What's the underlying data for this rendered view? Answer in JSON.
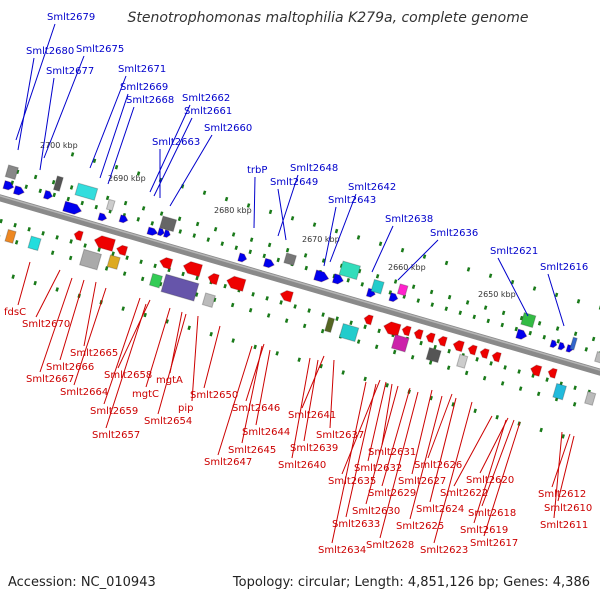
{
  "title": "Stenotrophomonas maltophilia K279a, complete genome",
  "footer": {
    "accession": "Accession: NC_010943",
    "summary": "Topology: circular; Length: 4,851,126 bp; Genes: 4,386"
  },
  "colors": {
    "forward_label": "#0000cc",
    "reverse_label": "#cc0000",
    "forward_gene": "#0000ee",
    "reverse_gene": "#ee0000",
    "backbone": "#808080",
    "tick": "#1a7a1a"
  },
  "scale_ticks": [
    "2700 kbp",
    "2690 kbp",
    "2680 kbp",
    "2670 kbp",
    "2660 kbp",
    "2650 kbp"
  ],
  "forward_genes": [
    "Smlt2679",
    "Smlt2680",
    "Smlt2675",
    "Smlt2677",
    "Smlt2671",
    "Smlt2669",
    "Smlt2668",
    "Smlt2662",
    "Smlt2661",
    "Smlt2663",
    "Smlt2660",
    "trbP",
    "Smlt2648",
    "Smlt2649",
    "Smlt2642",
    "Smlt2643",
    "Smlt2638",
    "Smlt2636",
    "Smlt2621",
    "Smlt2616"
  ],
  "reverse_genes": [
    "fdsC",
    "Smlt2670",
    "Smlt2665",
    "Smlt2666",
    "Smlt2667",
    "Smlt2664",
    "Smlt2658",
    "mgtA",
    "mgtC",
    "Smlt2659",
    "Smlt2657",
    "pip",
    "Smlt2654",
    "Smlt2650",
    "Smlt2646",
    "Smlt2644",
    "Smlt2645",
    "Smlt2647",
    "Smlt2641",
    "Smlt2637",
    "Smlt2639",
    "Smlt2640",
    "Smlt2631",
    "Smlt2632",
    "Smlt2635",
    "Smlt2626",
    "Smlt2627",
    "Smlt2629",
    "Smlt2630",
    "Smlt2633",
    "Smlt2634",
    "Smlt2624",
    "Smlt2625",
    "Smlt2628",
    "Smlt2623",
    "Smlt2620",
    "Smlt2622",
    "Smlt2618",
    "Smlt2619",
    "Smlt2617",
    "Smlt2612",
    "Smlt2610",
    "Smlt2611"
  ]
}
